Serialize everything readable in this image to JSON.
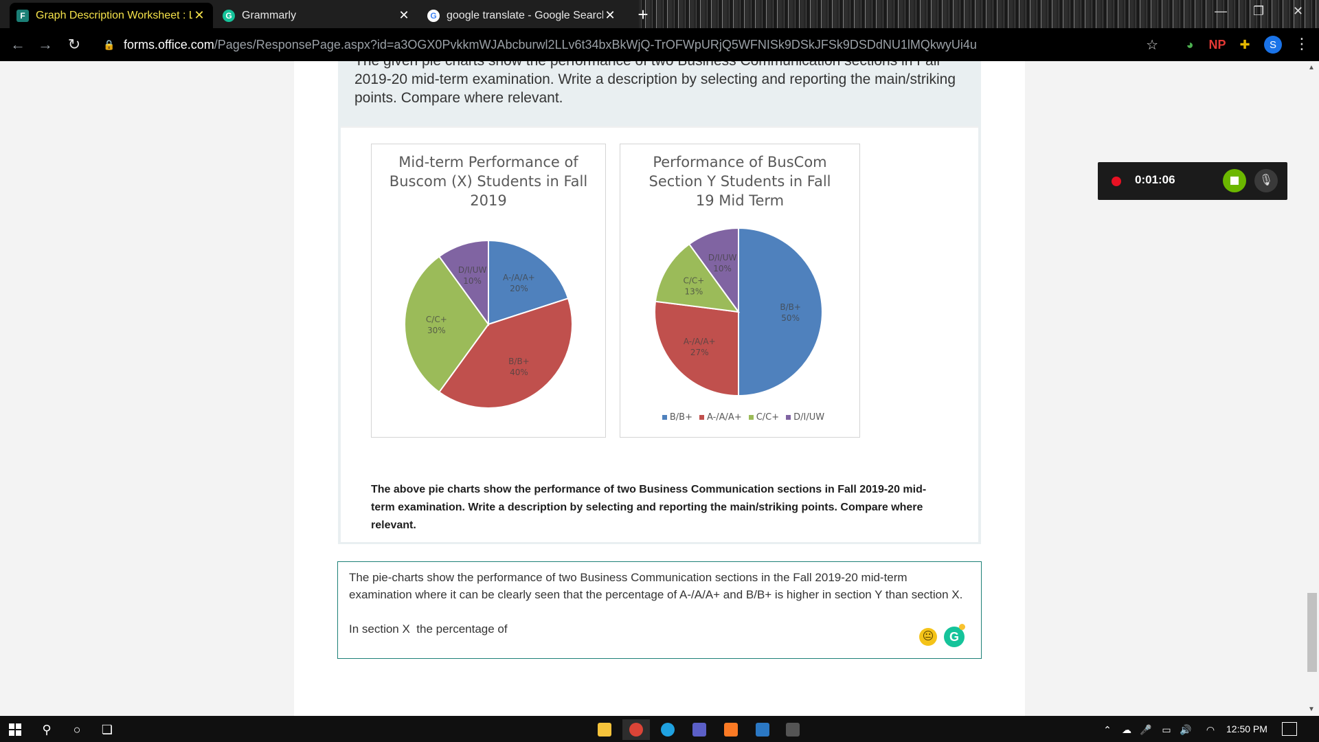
{
  "browser": {
    "tabs": [
      {
        "title": "Graph Description Worksheet : La",
        "favicon": "forms-icon",
        "active": true
      },
      {
        "title": "Grammarly",
        "favicon": "grammarly-icon",
        "active": false
      },
      {
        "title": "google translate - Google Search",
        "favicon": "google-icon",
        "active": false
      }
    ],
    "url_host": "forms.office.com",
    "url_path": "/Pages/ResponsePage.aspx?id=a3OGX0PvkkmWJAbcburwl2LLv6t34bxBkWjQ-TrOFWpURjQ5WFNISk9DSkJFSk9DSDdNU1lMQkwyUi4u",
    "extensions": {
      "np_label": "NP",
      "profile_initial": "S"
    }
  },
  "question": {
    "top_text": "The given pie charts show the performance of two Business Communication sections in Fall 2019-20 mid-term examination. Write a description by selecting and reporting the main/striking points. Compare where relevant.",
    "bottom_text": "The above pie charts show the performance of two Business Communication sections in Fall 2019-20 mid-term examination. Write a description by selecting and reporting the main/striking points. Compare where relevant."
  },
  "chart_data": [
    {
      "type": "pie",
      "title": "Mid-term Performance of Buscom (X) Students in Fall 2019",
      "categories": [
        "A-/A/A+",
        "B/B+",
        "C/C+",
        "D/I/UW"
      ],
      "values": [
        20,
        40,
        30,
        10
      ],
      "colors": [
        "#4f81bd",
        "#c0504d",
        "#9bbb59",
        "#8064a2"
      ],
      "legend": false
    },
    {
      "type": "pie",
      "title": "Performance of BusCom Section Y Students in Fall 19 Mid Term",
      "categories": [
        "B/B+",
        "A-/A/A+",
        "C/C+",
        "D/I/UW"
      ],
      "values": [
        50,
        27,
        13,
        10
      ],
      "colors": [
        "#4f81bd",
        "#c0504d",
        "#9bbb59",
        "#8064a2"
      ],
      "legend": true,
      "legend_position": "bottom"
    }
  ],
  "answer": {
    "text": "The pie-charts show the performance of two Business Communication sections in the Fall 2019-20 mid-term examination where it can be clearly seen that the percentage of A-/A/A+ and B/B+ is higher in section Y than section X.\n\nIn section X  the percentage of"
  },
  "recorder": {
    "time": "0:01:06"
  },
  "taskbar": {
    "clock": "12:50 PM"
  },
  "colors": {
    "form_accent": "#1b7f76",
    "active_tab_text": "#f6e34a"
  }
}
